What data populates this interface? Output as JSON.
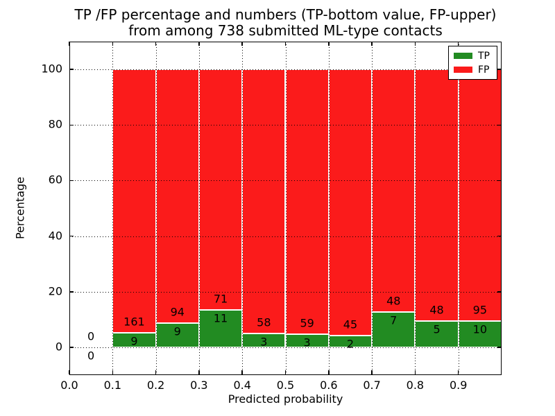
{
  "figure": {
    "title_line1": "TP /FP percentage and numbers (TP-bottom value, FP-upper)",
    "title_line2": "from among 738 submitted ML-type contacts"
  },
  "chart_data": {
    "type": "bar",
    "stacked": true,
    "normalized_to_percent": true,
    "title": "TP /FP percentage and numbers (TP-bottom value, FP-upper)\nfrom among 738 submitted ML-type contacts",
    "xlabel": "Predicted probability",
    "ylabel": "Percentage",
    "xlim": [
      0.0,
      1.0
    ],
    "ylim": [
      -10,
      110
    ],
    "bin_width": 0.1,
    "x_bin_starts": [
      0.0,
      0.1,
      0.2,
      0.3,
      0.4,
      0.5,
      0.6,
      0.7,
      0.8,
      0.9
    ],
    "x_tick_labels": [
      "0.0",
      "0.1",
      "0.2",
      "0.3",
      "0.4",
      "0.5",
      "0.6",
      "0.7",
      "0.8",
      "0.9"
    ],
    "y_tick_values": [
      0,
      20,
      40,
      60,
      80,
      100
    ],
    "grid": "dotted black, both axes, drawn over bars",
    "total_contacts": 738,
    "series": [
      {
        "name": "TP",
        "values": [
          0,
          9,
          9,
          11,
          3,
          3,
          2,
          7,
          5,
          10
        ]
      },
      {
        "name": "FP",
        "values": [
          0,
          161,
          94,
          71,
          58,
          59,
          45,
          48,
          48,
          95
        ]
      }
    ],
    "colors": {
      "tp": "#228b22",
      "fp": "#fb1b1b"
    },
    "legend": {
      "position": "upper right",
      "items": [
        {
          "label": "TP",
          "color": "#228b22"
        },
        {
          "label": "FP",
          "color": "#fb1b1b"
        }
      ]
    }
  }
}
